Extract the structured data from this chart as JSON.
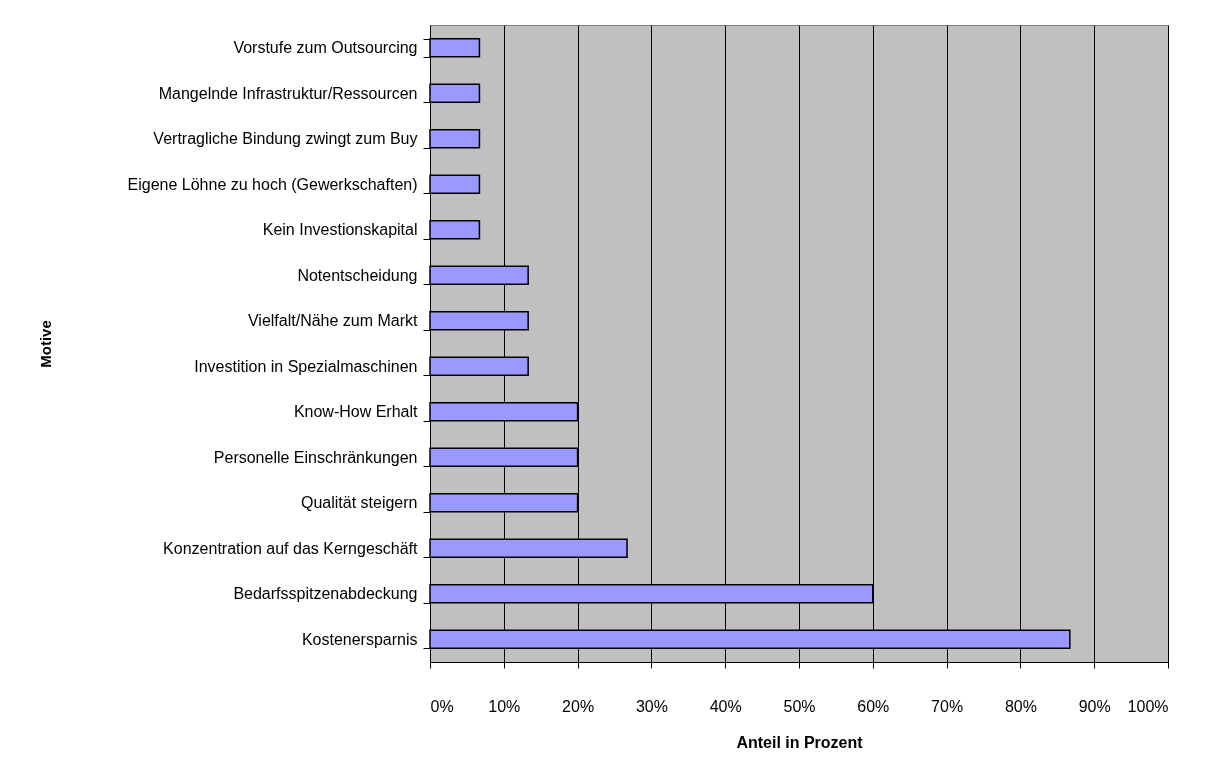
{
  "chart_data": {
    "type": "bar",
    "orientation": "horizontal",
    "xlabel": "Anteil in Prozent",
    "ylabel": "Motive",
    "categories": [
      "Vorstufe zum Outsourcing",
      "Mangelnde Infrastruktur/Ressourcen",
      "Vertragliche Bindung zwingt zum Buy",
      "Eigene Löhne zu hoch (Gewerkschaften)",
      "Kein Investionskapital",
      "Notentscheidung",
      "Vielfalt/Nähe zum Markt",
      "Investition in Spezialmaschinen",
      "Know-How Erhalt",
      "Personelle Einschränkungen",
      "Qualität steigern",
      "Konzentration auf das Kerngeschäft",
      "Bedarfsspitzenabdeckung",
      "Kostenersparnis"
    ],
    "values": [
      6.7,
      6.7,
      6.7,
      6.7,
      6.7,
      13.3,
      13.3,
      13.3,
      20,
      20,
      20,
      26.7,
      60,
      86.7
    ],
    "color": "#9999ff",
    "xlim": [
      0,
      100
    ],
    "xticks": [
      {
        "value": 0,
        "label": "0%"
      },
      {
        "value": 10,
        "label": "10%"
      },
      {
        "value": 20,
        "label": "20%"
      },
      {
        "value": 30,
        "label": "30%"
      },
      {
        "value": 40,
        "label": "40%"
      },
      {
        "value": 50,
        "label": "50%"
      },
      {
        "value": 60,
        "label": "60%"
      },
      {
        "value": 70,
        "label": "70%"
      },
      {
        "value": 80,
        "label": "80%"
      },
      {
        "value": 90,
        "label": "90%"
      },
      {
        "value": 100,
        "label": "100%"
      }
    ],
    "grid": "x"
  }
}
